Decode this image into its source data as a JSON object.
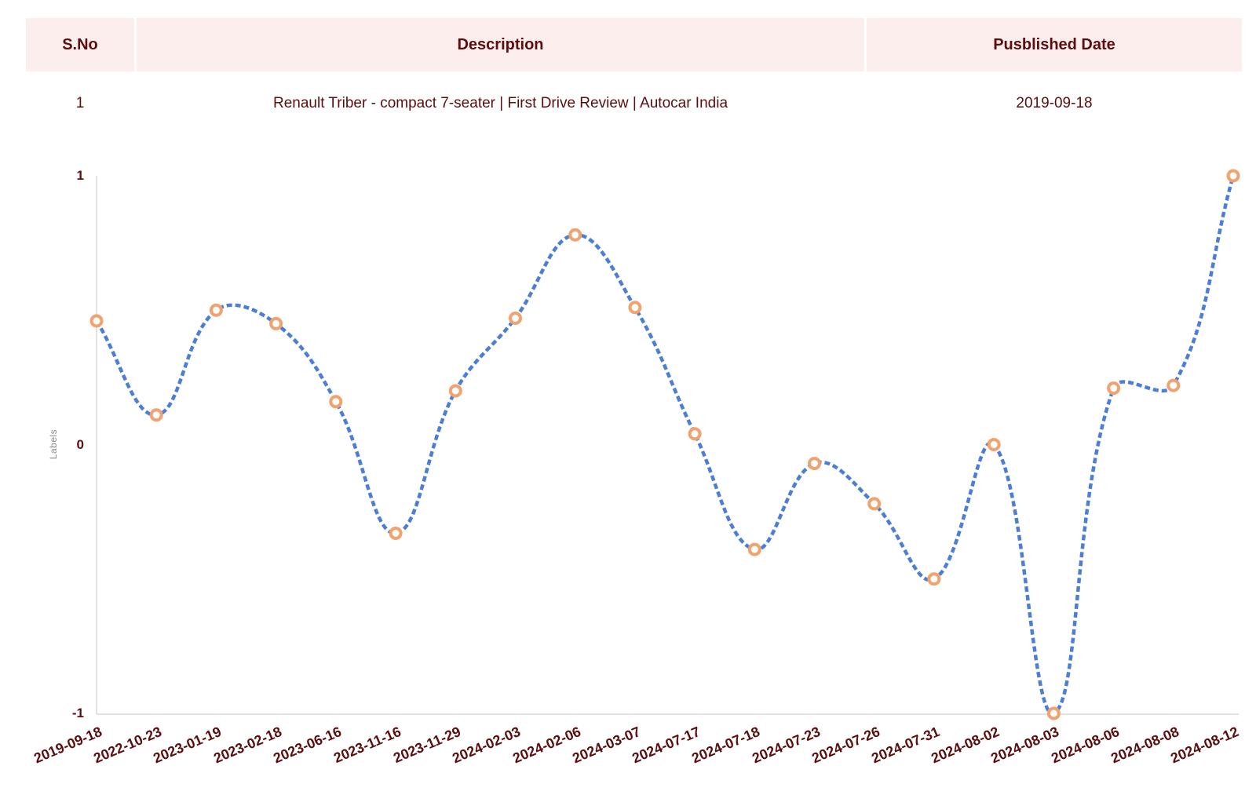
{
  "table": {
    "headers": [
      "S.No",
      "Description",
      "Pusblished Date"
    ],
    "rows": [
      {
        "sno": "1",
        "description": "Renault Triber - compact 7-seater | First Drive Review | Autocar India",
        "published_date": "2019-09-18"
      }
    ]
  },
  "chart_data": {
    "type": "line",
    "title": "",
    "xlabel": "",
    "ylabel": "Labels",
    "x": [
      "2019-09-18",
      "2022-10-23",
      "2023-01-19",
      "2023-02-18",
      "2023-06-16",
      "2023-11-16",
      "2023-11-29",
      "2024-02-03",
      "2024-02-06",
      "2024-03-07",
      "2024-07-17",
      "2024-07-18",
      "2024-07-23",
      "2024-07-26",
      "2024-07-31",
      "2024-08-02",
      "2024-08-03",
      "2024-08-06",
      "2024-08-08",
      "2024-08-12"
    ],
    "series": [
      {
        "name": "Labels",
        "values": [
          0.46,
          0.11,
          0.5,
          0.45,
          0.16,
          -0.33,
          0.2,
          0.47,
          0.78,
          0.51,
          0.04,
          -0.39,
          -0.07,
          -0.22,
          -0.5,
          0.0,
          -1.0,
          0.21,
          0.22,
          1.0
        ]
      }
    ],
    "ylim": [
      -1,
      1
    ],
    "yticks": [
      1,
      0,
      -1
    ],
    "grid": false,
    "legend": false,
    "line_style": "dashed",
    "curve": "smooth",
    "marker": "open-circle"
  },
  "colors": {
    "header_bg": "#fdeeee",
    "text_maroon": "#5c0d0d",
    "line_blue": "#4d7ed5",
    "marker_orange": "#f2a26e",
    "marker_fill": "#ffffff",
    "axis_gray": "#e2e2e2",
    "axis_title_gray": "#8c8c8c"
  }
}
